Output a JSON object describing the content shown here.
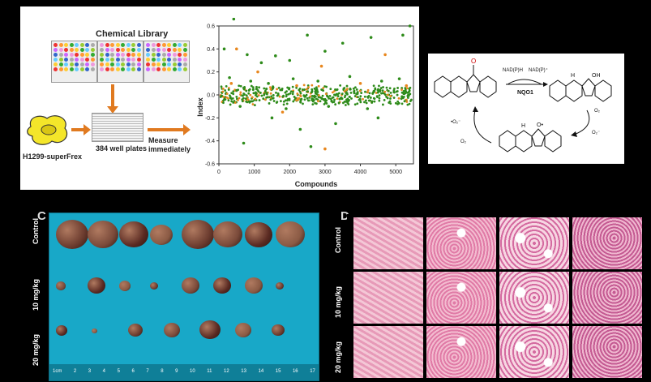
{
  "panel_a": {
    "library_title": "Chemical Library",
    "cell_line": "H1299-superFrex",
    "plate_label": "384 well plates",
    "measure_label_1": "Measure",
    "measure_label_2": "immediately",
    "colors": {
      "arrow": "#e07a20",
      "green": "#2e8b1a",
      "orange": "#e8871e"
    }
  },
  "chart_data": {
    "type": "scatter",
    "xlabel": "Compounds",
    "ylabel": "Index",
    "xlim": [
      0,
      5500
    ],
    "ylim": [
      -0.6,
      0.6
    ],
    "xticks": [
      0,
      1000,
      2000,
      3000,
      4000,
      5000
    ],
    "yticks": [
      0.6,
      0.4,
      0.2,
      0.0,
      -0.2,
      -0.4,
      -0.6
    ],
    "tick_labels_x": [
      "0",
      "1000",
      "2000",
      "3000",
      "4000",
      "5000"
    ],
    "tick_labels_y": [
      "0.6",
      "0.4",
      "0.2",
      "0.0",
      "-0.2",
      "-0.4",
      "-0.6"
    ],
    "series": [
      {
        "color": "#2e8b1a",
        "values": [
          [
            420,
            0.66
          ],
          [
            150,
            0.4
          ],
          [
            800,
            0.35
          ],
          [
            1200,
            0.28
          ],
          [
            1600,
            0.34
          ],
          [
            2000,
            0.3
          ],
          [
            2500,
            0.52
          ],
          [
            3000,
            0.38
          ],
          [
            3500,
            0.45
          ],
          [
            4300,
            0.5
          ],
          [
            5200,
            0.52
          ],
          [
            5400,
            0.6
          ],
          [
            700,
            -0.42
          ],
          [
            1500,
            -0.2
          ],
          [
            2300,
            -0.3
          ],
          [
            2600,
            -0.45
          ],
          [
            3300,
            -0.25
          ],
          [
            4500,
            -0.2
          ],
          [
            300,
            0.15
          ],
          [
            900,
            0.12
          ],
          [
            1400,
            0.1
          ],
          [
            2100,
            0.14
          ],
          [
            2800,
            0.12
          ],
          [
            3700,
            0.16
          ],
          [
            4600,
            0.12
          ],
          [
            5100,
            0.14
          ],
          [
            600,
            -0.1
          ],
          [
            1900,
            -0.12
          ],
          [
            3100,
            -0.1
          ],
          [
            4200,
            -0.12
          ]
        ]
      },
      {
        "color": "#e8871e",
        "values": [
          [
            500,
            0.4
          ],
          [
            1100,
            0.2
          ],
          [
            2900,
            0.25
          ],
          [
            4700,
            0.35
          ],
          [
            3000,
            -0.47
          ],
          [
            1800,
            -0.15
          ],
          [
            350,
            0.1
          ],
          [
            2200,
            0.08
          ],
          [
            4000,
            0.1
          ],
          [
            5300,
            0.08
          ]
        ]
      }
    ]
  },
  "panel_b": {
    "label_top_left": "NAD(P)H",
    "label_top_right": "NAD(P)⁺",
    "enzyme": "NQO1",
    "oxygen_left": "O₂",
    "superoxide_left": "•O₂⁻",
    "oxygen_right": "O₂",
    "superoxide_right": "O₂⁻",
    "oh_label": "OH",
    "o_label": "O•",
    "h_label": "H"
  },
  "panel_c": {
    "rows": [
      "Control",
      "10 mg/kg",
      "20 mg/kg"
    ],
    "ruler_numbers": [
      "1cm",
      "2",
      "3",
      "4",
      "5",
      "6",
      "7",
      "8",
      "9",
      "10",
      "11",
      "12",
      "13",
      "14",
      "15",
      "16",
      "17"
    ],
    "letter": "C"
  },
  "panel_d": {
    "rows": [
      "Control",
      "10 mg/kg",
      "20 mg/kg"
    ],
    "letter": "D"
  }
}
